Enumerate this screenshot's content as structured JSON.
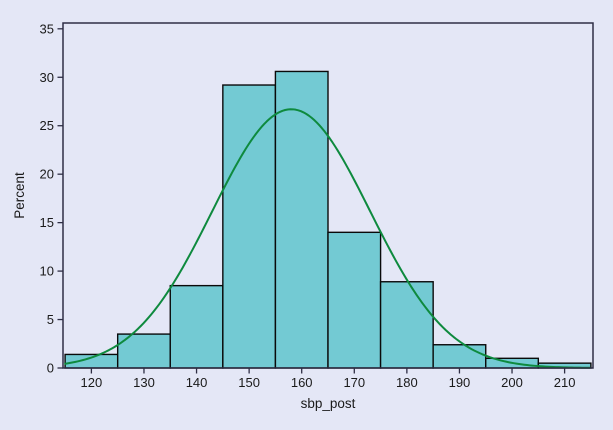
{
  "page": {
    "background_color": "#e4e7f6"
  },
  "chart_data": {
    "type": "bar",
    "subtype": "histogram-with-normal-curve",
    "title": "",
    "xlabel": "sbp_post",
    "ylabel": "Percent",
    "bin_width": 10,
    "bins": [
      {
        "start": 115,
        "end": 125,
        "percent": 1.4
      },
      {
        "start": 125,
        "end": 135,
        "percent": 3.5
      },
      {
        "start": 135,
        "end": 145,
        "percent": 8.5
      },
      {
        "start": 145,
        "end": 155,
        "percent": 29.2
      },
      {
        "start": 155,
        "end": 165,
        "percent": 30.6
      },
      {
        "start": 165,
        "end": 175,
        "percent": 14.0
      },
      {
        "start": 175,
        "end": 185,
        "percent": 8.9
      },
      {
        "start": 185,
        "end": 195,
        "percent": 2.4
      },
      {
        "start": 195,
        "end": 205,
        "percent": 1.0
      },
      {
        "start": 205,
        "end": 215,
        "percent": 0.5
      }
    ],
    "normal_curve": {
      "mean": 158,
      "sd": 15,
      "peak_percent": 26.7
    },
    "x_ticks": [
      120,
      130,
      140,
      150,
      160,
      170,
      180,
      190,
      200,
      210
    ],
    "y_ticks": [
      0,
      5,
      10,
      15,
      20,
      25,
      30,
      35
    ],
    "xlim": [
      114.6,
      215.4
    ],
    "ylim": [
      0,
      35.6
    ],
    "grid": "off",
    "legend": "none",
    "colors": {
      "background": "#e4e7f6",
      "bar_fill": "#73cad3",
      "bar_border": "#0a0a0a",
      "curve": "#0e8a3e",
      "frame": "#2e2e45",
      "tick": "#2e2e45",
      "text": "#1a1a1a"
    }
  }
}
